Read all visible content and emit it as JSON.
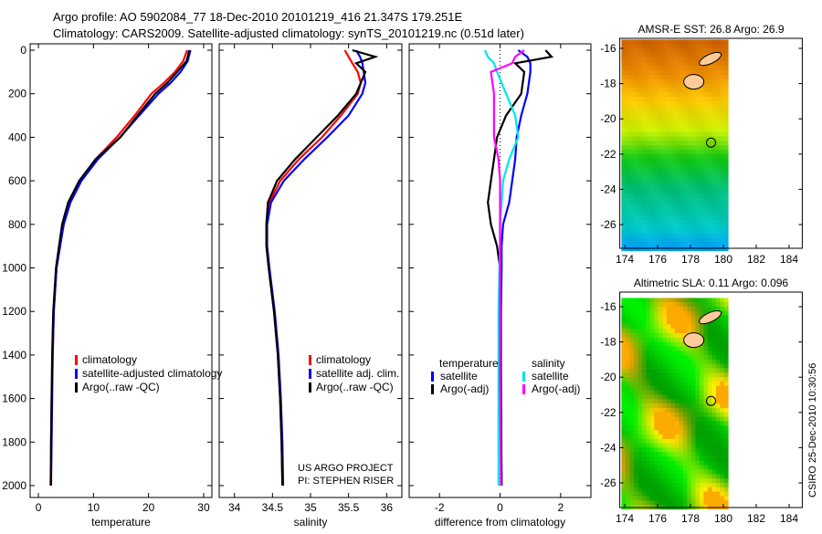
{
  "title": {
    "line1": "Argo profile: AO 5902084_77 18-Dec-2010 20101219_416 21.347S 179.251E",
    "line2": "Climatology: CARS2009. Satellite-adjusted climatology: synTS_20101219.nc (0.51d later)"
  },
  "side_label": "CSIRO 25-Dec-2010 10:30:56",
  "project": {
    "line1": "US ARGO PROJECT",
    "line2": "PI: STEPHEN RISER"
  },
  "chart_data": [
    {
      "type": "line",
      "id": "temperature",
      "xlabel": "temperature",
      "ylabel": "",
      "xlim": [
        -1.5,
        31.5
      ],
      "ylim": [
        2000,
        0
      ],
      "xticks": [
        0,
        10,
        20,
        30
      ],
      "yticks": [
        0,
        200,
        400,
        600,
        800,
        1000,
        1200,
        1400,
        1600,
        1800,
        2000
      ],
      "depth": [
        0,
        50,
        100,
        150,
        200,
        300,
        400,
        500,
        600,
        700,
        800,
        1000,
        1200,
        1400,
        1600,
        1800,
        2000
      ],
      "series": [
        {
          "name": "climatology",
          "color": "#ff0000",
          "values": [
            27.0,
            26.3,
            24.8,
            22.8,
            20.5,
            17.5,
            14.2,
            10.4,
            7.6,
            5.7,
            4.5,
            3.3,
            2.8,
            2.6,
            2.4,
            2.3,
            2.2
          ]
        },
        {
          "name": "satellite-adjusted climatology",
          "color": "#0000ff",
          "values": [
            27.6,
            27.1,
            25.8,
            24.0,
            21.8,
            18.3,
            14.8,
            10.8,
            7.8,
            5.8,
            4.6,
            3.3,
            2.8,
            2.6,
            2.5,
            2.4,
            2.3
          ]
        },
        {
          "name": "Argo(..raw -QC)",
          "color": "#000000",
          "values": [
            27.4,
            26.9,
            25.2,
            23.4,
            21.2,
            18.0,
            14.9,
            10.4,
            7.4,
            5.4,
            4.3,
            3.2,
            2.7,
            2.5,
            2.4,
            2.3,
            2.3
          ]
        }
      ]
    },
    {
      "type": "line",
      "id": "salinity",
      "xlabel": "salinity",
      "xlim": [
        33.8,
        36.2
      ],
      "ylim": [
        2000,
        0
      ],
      "xticks": [
        34,
        34.5,
        35,
        35.5,
        36
      ],
      "depth": [
        0,
        30,
        60,
        100,
        150,
        200,
        300,
        400,
        500,
        600,
        700,
        800,
        900,
        1000,
        1200,
        1400,
        1600,
        1800,
        2000
      ],
      "series": [
        {
          "name": "climatology",
          "color": "#ff0000",
          "values": [
            35.45,
            35.5,
            35.55,
            35.62,
            35.66,
            35.62,
            35.4,
            35.15,
            34.85,
            34.6,
            34.46,
            34.42,
            34.42,
            34.45,
            34.52,
            34.57,
            34.6,
            34.62,
            34.63
          ]
        },
        {
          "name": "satellite adj. clim.",
          "color": "#0000ff",
          "values": [
            35.6,
            35.65,
            35.68,
            35.7,
            35.72,
            35.68,
            35.5,
            35.22,
            34.92,
            34.65,
            34.48,
            34.43,
            34.43,
            34.46,
            34.53,
            34.58,
            34.61,
            34.63,
            34.64
          ]
        },
        {
          "name": "Argo(..raw -QC)",
          "color": "#000000",
          "values": [
            35.55,
            35.85,
            35.6,
            35.72,
            35.66,
            35.6,
            35.36,
            35.08,
            34.8,
            34.56,
            34.44,
            34.42,
            34.42,
            34.45,
            34.52,
            34.57,
            34.6,
            34.62,
            34.63
          ]
        }
      ]
    },
    {
      "type": "line",
      "id": "difference",
      "xlabel": "difference from climatology",
      "xlim": [
        -3,
        3
      ],
      "ylim": [
        2000,
        0
      ],
      "xticks": [
        -2,
        0,
        2
      ],
      "legend_headers": [
        "temperature",
        "salinity"
      ],
      "depth": [
        0,
        30,
        60,
        100,
        200,
        300,
        400,
        500,
        600,
        700,
        800,
        900,
        1000,
        1200,
        1500,
        2000
      ],
      "series": [
        {
          "name": "satellite",
          "group": "temperature",
          "color": "#0000ff",
          "values": [
            0.6,
            0.9,
            1.0,
            1.0,
            0.9,
            0.7,
            0.55,
            0.5,
            0.4,
            0.3,
            0.1,
            0.05,
            0.05,
            0.03,
            0.03,
            0.05
          ]
        },
        {
          "name": "Argo(-adj)",
          "group": "temperature",
          "color": "#000000",
          "values": [
            1.5,
            1.7,
            0.5,
            0.8,
            0.7,
            0.2,
            -0.1,
            -0.2,
            -0.3,
            -0.4,
            -0.3,
            -0.1,
            0.0,
            0.0,
            0.02,
            0.05
          ]
        },
        {
          "name": "satellite",
          "group": "salinity",
          "color": "#00e5e5",
          "values": [
            -0.5,
            -0.4,
            -0.2,
            -0.1,
            0.2,
            0.5,
            0.6,
            0.3,
            0.1,
            0.05,
            0.0,
            0.0,
            -0.02,
            -0.05,
            -0.05,
            -0.05
          ]
        },
        {
          "name": "Argo(-adj)",
          "group": "salinity",
          "color": "#ff00ff",
          "values": [
            0.8,
            0.5,
            0.4,
            -0.3,
            -0.2,
            -0.2,
            -0.2,
            -0.05,
            0.0,
            0.0,
            0.0,
            0.0,
            0.0,
            0.0,
            0.0,
            0.03
          ]
        }
      ]
    },
    {
      "type": "heatmap",
      "id": "sst-map",
      "title": "AMSR-E SST: 26.8 Argo: 26.9",
      "xlim": [
        173.7,
        184.8
      ],
      "ylim": [
        -27.5,
        -15.4
      ],
      "xticks": [
        174,
        176,
        178,
        180,
        182,
        184
      ],
      "yticks": [
        -16,
        -18,
        -20,
        -22,
        -24,
        -26
      ],
      "float_position": {
        "lon": 179.25,
        "lat": -21.35
      }
    },
    {
      "type": "heatmap",
      "id": "sla-map",
      "title": "Altimetric SLA: 0.11 Argo: 0.096",
      "xlim": [
        173.7,
        184.8
      ],
      "ylim": [
        -27.5,
        -15.4
      ],
      "xticks": [
        174,
        176,
        178,
        180,
        182,
        184
      ],
      "yticks": [
        -16,
        -18,
        -20,
        -22,
        -24,
        -26
      ],
      "float_position": {
        "lon": 179.25,
        "lat": -21.35
      }
    }
  ]
}
